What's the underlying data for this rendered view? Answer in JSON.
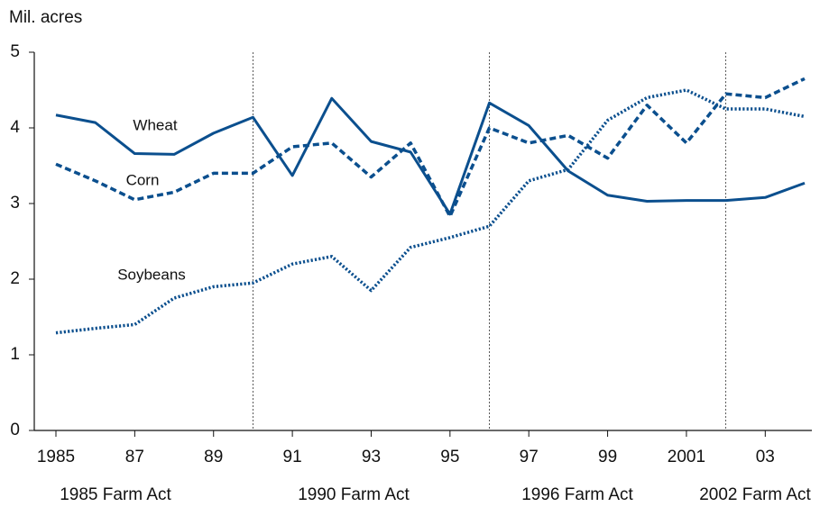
{
  "chart_data": {
    "type": "line",
    "y_label": "Mil. acres",
    "x": [
      1985,
      1986,
      1987,
      1988,
      1989,
      1990,
      1991,
      1992,
      1993,
      1994,
      1995,
      1996,
      1997,
      1998,
      1999,
      2000,
      2001,
      2002,
      2003,
      2004
    ],
    "xlim": [
      1985,
      2004
    ],
    "xticks": [
      1985,
      {
        "value": 1987,
        "label": "87"
      },
      {
        "value": 1989,
        "label": "89"
      },
      {
        "value": 1991,
        "label": "91"
      },
      {
        "value": 1993,
        "label": "93"
      },
      {
        "value": 1995,
        "label": "95"
      },
      {
        "value": 1997,
        "label": "97"
      },
      {
        "value": 1999,
        "label": "99"
      },
      2001,
      {
        "value": 2003,
        "label": "03"
      }
    ],
    "ylim": [
      0,
      5
    ],
    "yticks": [
      0,
      1,
      2,
      3,
      4,
      5
    ],
    "series": [
      {
        "name": "Wheat",
        "color": "#0b4f8e",
        "style": "solid",
        "values": [
          4.17,
          4.07,
          3.66,
          3.65,
          3.93,
          4.14,
          3.37,
          4.39,
          3.82,
          3.68,
          2.86,
          4.33,
          4.03,
          3.43,
          3.11,
          3.03,
          3.04,
          3.04,
          3.08,
          3.27
        ]
      },
      {
        "name": "Corn",
        "color": "#0b4f8e",
        "style": "dashed",
        "values": [
          3.52,
          3.3,
          3.05,
          3.15,
          3.4,
          3.4,
          3.75,
          3.8,
          3.35,
          3.8,
          2.83,
          4.0,
          3.8,
          3.9,
          3.6,
          4.3,
          3.8,
          4.45,
          4.4,
          4.65
        ]
      },
      {
        "name": "Soybeans",
        "color": "#0b4f8e",
        "style": "dotted",
        "values": [
          1.29,
          1.35,
          1.4,
          1.75,
          1.9,
          1.95,
          2.2,
          2.3,
          1.85,
          2.42,
          2.55,
          2.7,
          3.3,
          3.45,
          4.1,
          4.4,
          4.5,
          4.25,
          4.25,
          4.15
        ]
      }
    ],
    "acts": [
      {
        "year": 1985,
        "label": "1985 Farm Act"
      },
      {
        "year": 1990,
        "label": "1990 Farm Act"
      },
      {
        "year": 1996,
        "label": "1996 Farm Act"
      },
      {
        "year": 2002,
        "label": "2002 Farm Act"
      }
    ]
  }
}
